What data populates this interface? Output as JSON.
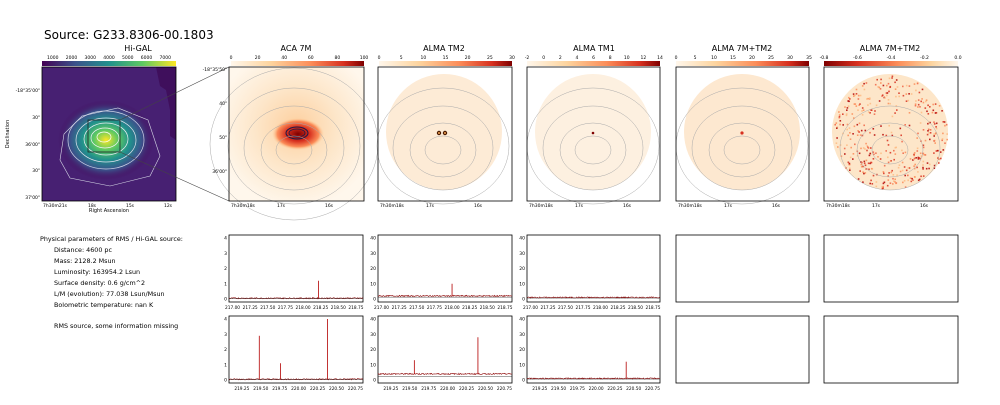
{
  "source_title": "Source: G233.8306-00.1803",
  "panels": [
    {
      "title": "Hi-GAL",
      "cbar_ticks": [
        "1000",
        "2000",
        "3000",
        "4000",
        "5000",
        "6000",
        "7000"
      ]
    },
    {
      "title": "ACA 7M",
      "cbar_ticks": [
        "0",
        "20",
        "40",
        "60",
        "80",
        "100"
      ]
    },
    {
      "title": "ALMA TM2",
      "cbar_ticks": [
        "0",
        "5",
        "10",
        "15",
        "20",
        "25",
        "30"
      ]
    },
    {
      "title": "ALMA TM1",
      "cbar_ticks": [
        "-2",
        "0",
        "2",
        "4",
        "6",
        "8",
        "10",
        "12",
        "14"
      ]
    },
    {
      "title": "ALMA 7M+TM2",
      "cbar_ticks": [
        "0",
        "5",
        "10",
        "15",
        "20",
        "25",
        "30",
        "35"
      ]
    },
    {
      "title": "ALMA 7M+TM2",
      "cbar_ticks": [
        "-0.8",
        "-0.6",
        "-0.4",
        "-0.2",
        "0.0"
      ]
    }
  ],
  "higal_axes": {
    "ylabel": "Declination",
    "xlabel": "Right Ascension",
    "yticks": [
      "-18°35'00\"",
      "30\"",
      "36'00\"",
      "30\"",
      "37'00\""
    ],
    "xticks": [
      "7h30m21s",
      "18s",
      "15s",
      "12s"
    ]
  },
  "zoom_axes": {
    "yticks": [
      "-18°35'50\"",
      "40\"",
      "50\"",
      "36'00\""
    ],
    "xticks": [
      "7h30m18s",
      "17s",
      "16s"
    ]
  },
  "params": {
    "heading": "Physical parameters of RMS / Hi-GAL source:",
    "lines": [
      "Distance: 4600 pc",
      "Mass: 2128.2 Msun",
      "Luminosity: 163954.2 Lsun",
      "Surface density: 0.6 g/cm^2",
      "L/M (evolution): 77.038 Lsun/Msun",
      "Bolometric temperature: nan K"
    ],
    "note": "RMS source, some information missing"
  },
  "spectra_xticks": {
    "row1": [
      "217.00",
      "217.25",
      "217.50",
      "217.75",
      "218.00",
      "218.25",
      "218.50",
      "218.75"
    ],
    "row2": [
      "219.25",
      "219.50",
      "219.75",
      "220.00",
      "220.25",
      "220.50",
      "220.75"
    ]
  },
  "chart_data": [
    {
      "type": "line",
      "name": "ACA 7M spectrum (row 1)",
      "ylim": [
        0,
        4
      ],
      "yticks": [
        "0",
        "1",
        "2",
        "3",
        "4"
      ],
      "x_range": [
        216.95,
        218.85
      ],
      "baseline": 0.05,
      "peaks": [
        {
          "x": 218.22,
          "y": 1.2
        }
      ]
    },
    {
      "type": "line",
      "name": "ALMA TM2 spectrum (row 1)",
      "ylim": [
        0,
        40
      ],
      "yticks": [
        "0",
        "10",
        "20",
        "30",
        "40"
      ],
      "x_range": [
        216.95,
        218.85
      ],
      "baseline": 2,
      "peaks": [
        {
          "x": 218.0,
          "y": 10
        }
      ]
    },
    {
      "type": "line",
      "name": "ALMA TM1 spectrum (row 1)",
      "ylim": [
        0,
        40
      ],
      "yticks": [
        "0",
        "10",
        "20",
        "30",
        "40"
      ],
      "x_range": [
        216.95,
        218.85
      ],
      "baseline": 1,
      "peaks": []
    },
    {
      "type": "line",
      "name": "ACA 7M spectrum (row 2)",
      "ylim": [
        0,
        4
      ],
      "yticks": [
        "0",
        "1",
        "2",
        "3",
        "4"
      ],
      "x_range": [
        219.08,
        220.85
      ],
      "baseline": 0.05,
      "peaks": [
        {
          "x": 219.48,
          "y": 2.9
        },
        {
          "x": 219.76,
          "y": 1.1
        },
        {
          "x": 220.38,
          "y": 4.0
        }
      ]
    },
    {
      "type": "line",
      "name": "ALMA TM2 spectrum (row 2)",
      "ylim": [
        0,
        40
      ],
      "yticks": [
        "0",
        "10",
        "20",
        "30",
        "40"
      ],
      "x_range": [
        219.08,
        220.85
      ],
      "baseline": 4,
      "peaks": [
        {
          "x": 219.56,
          "y": 13
        },
        {
          "x": 220.4,
          "y": 28
        }
      ]
    },
    {
      "type": "line",
      "name": "ALMA TM1 spectrum (row 2)",
      "ylim": [
        0,
        40
      ],
      "yticks": [
        "0",
        "10",
        "20",
        "30",
        "40"
      ],
      "x_range": [
        219.08,
        220.85
      ],
      "baseline": 1,
      "peaks": [
        {
          "x": 220.4,
          "y": 12
        }
      ]
    }
  ]
}
